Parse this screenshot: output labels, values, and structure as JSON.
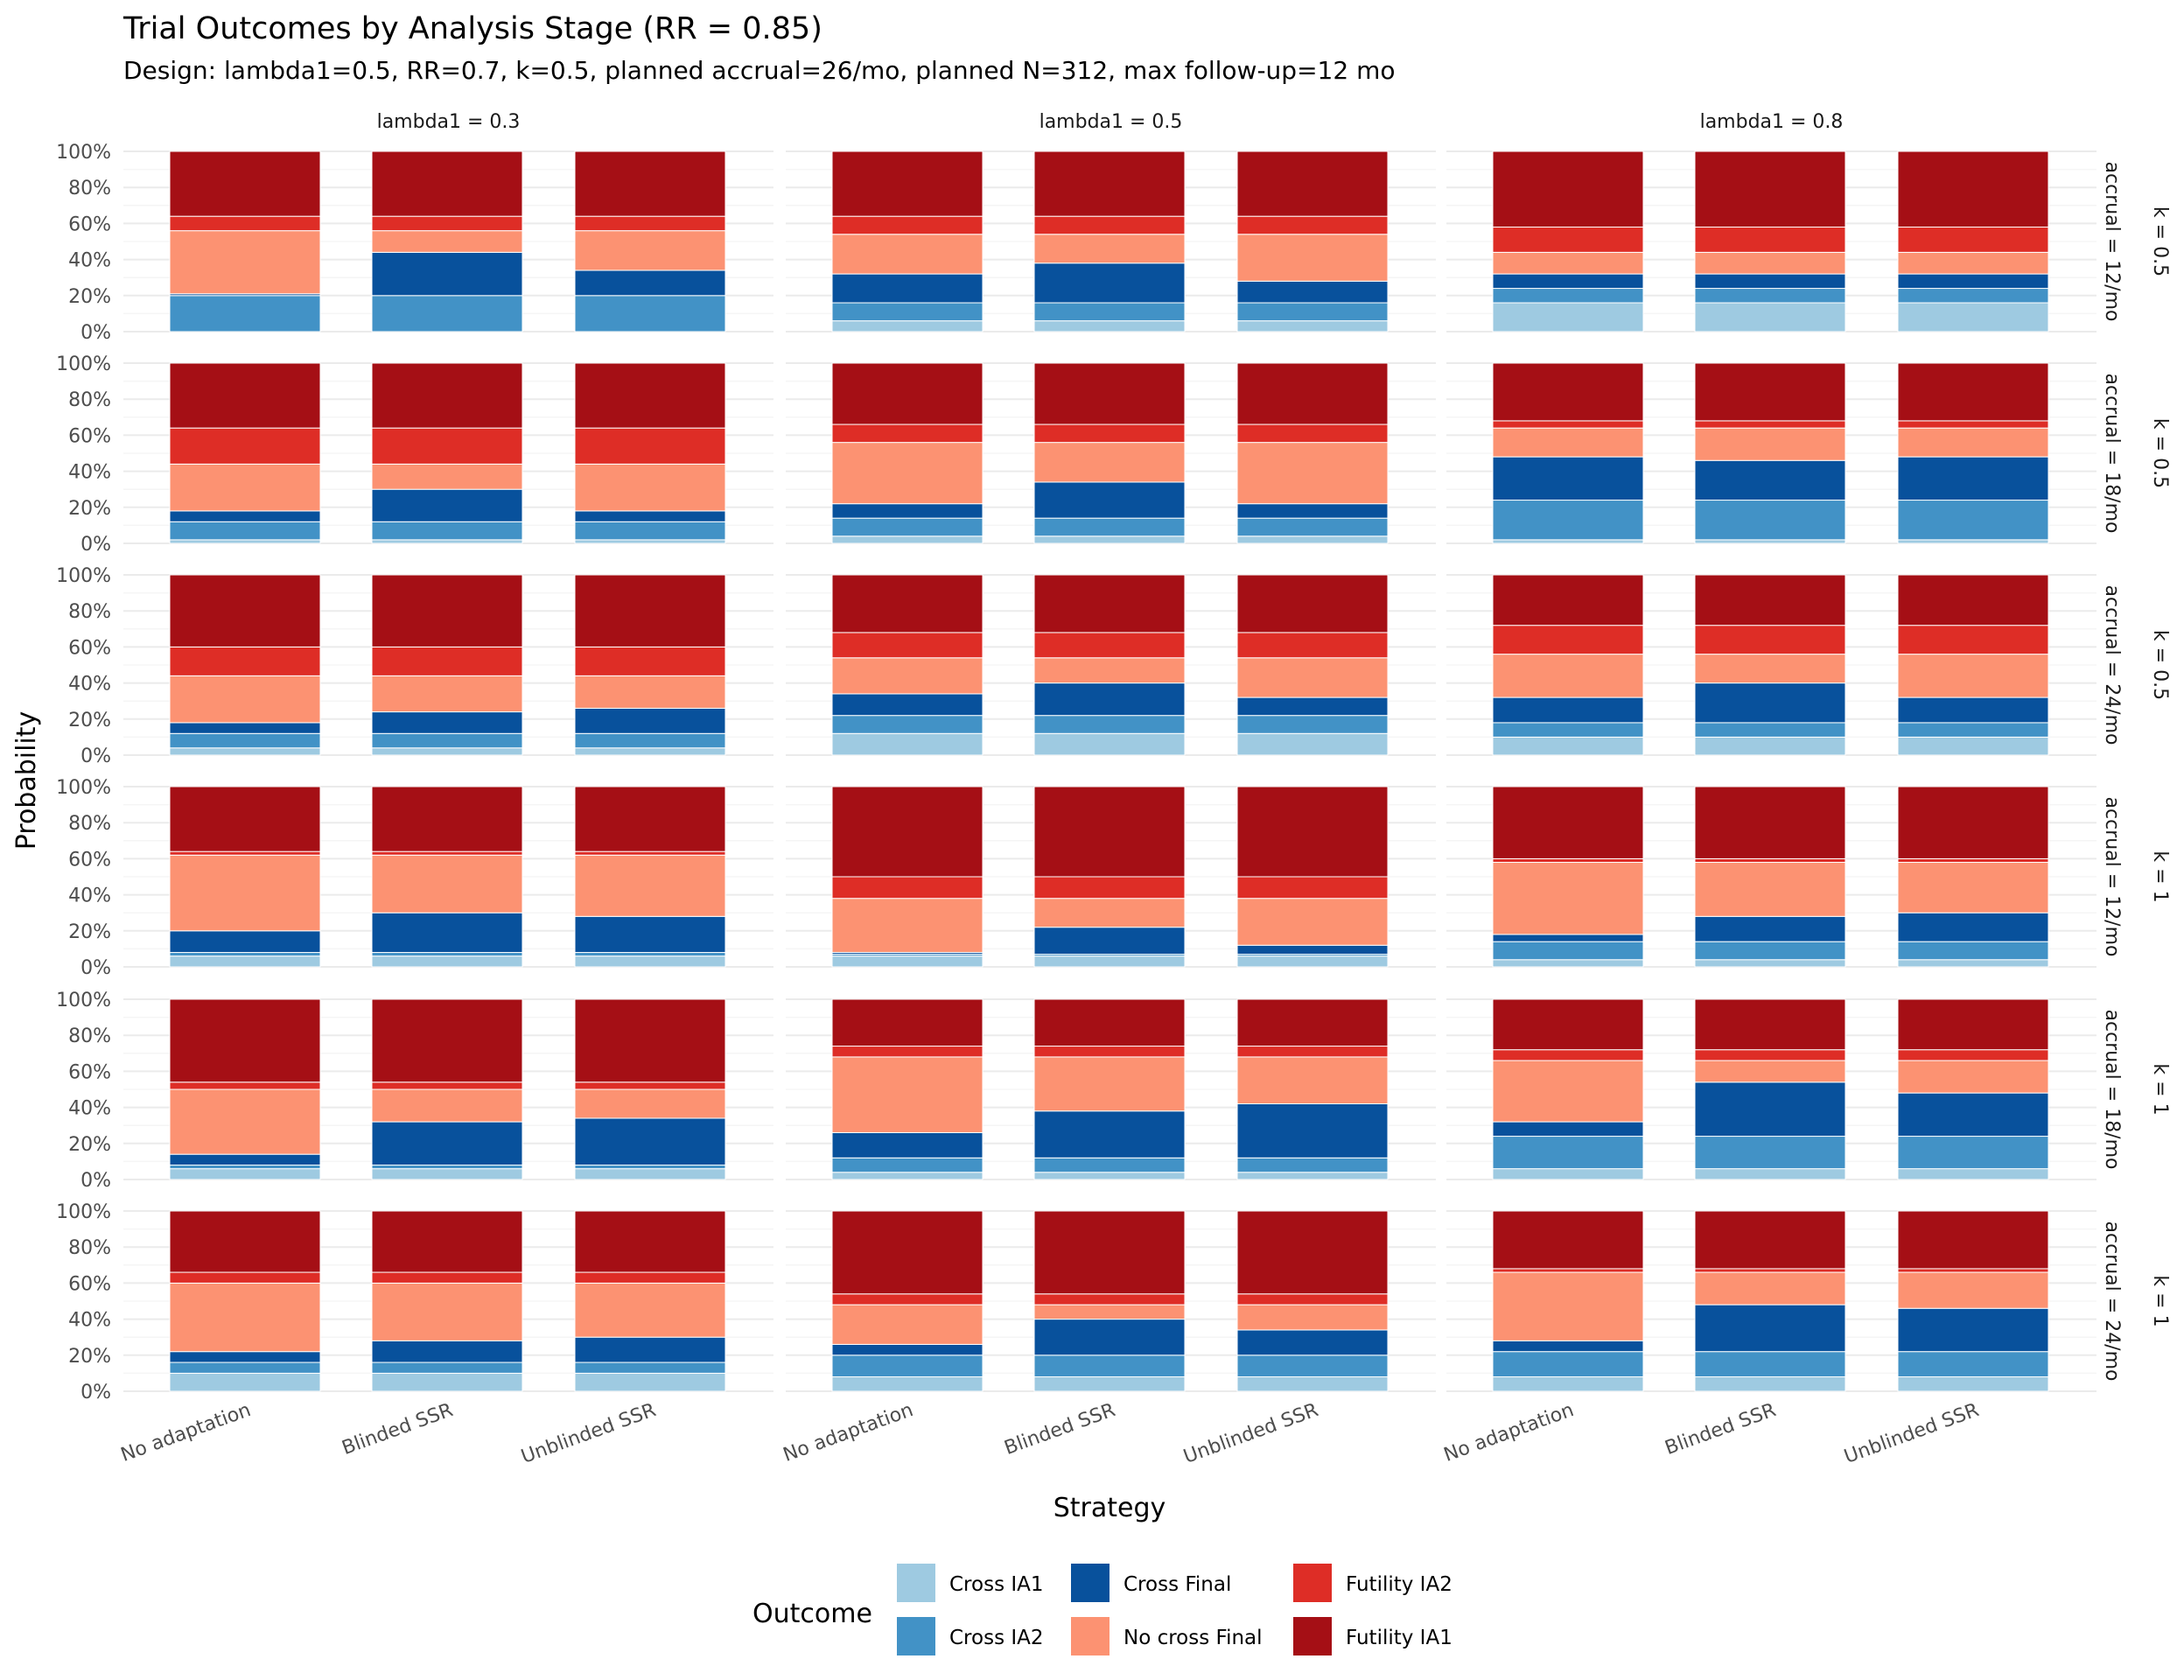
{
  "title": "Trial Outcomes by Analysis Stage (RR = 0.85)",
  "subtitle": "Design: lambda1=0.5, RR=0.7, k=0.5, planned accrual=26/mo, planned N=312, max follow-up=12 mo",
  "colors": {
    "Cross IA1": "#9ecae1",
    "Cross IA2": "#4292c6",
    "Cross Final": "#08519c",
    "No cross Final": "#fc9272",
    "Futility IA2": "#de2d26",
    "Futility IA1": "#a50f15",
    "grid_major": "#ebebeb",
    "grid_minor": "#f5f5f5"
  },
  "chart_data": {
    "type": "bar",
    "stacked": true,
    "xlabel": "Strategy",
    "ylabel": "Probability",
    "ylim": [
      0,
      1
    ],
    "y_ticks": [
      "0%",
      "20%",
      "40%",
      "60%",
      "80%",
      "100%"
    ],
    "categories": [
      "No adaptation",
      "Blinded SSR",
      "Unblinded SSR"
    ],
    "facet_columns": [
      "lambda1 = 0.3",
      "lambda1 = 0.5",
      "lambda1 = 0.8"
    ],
    "facet_rows": [
      {
        "accrual": "accrual = 12/mo",
        "k": "k = 0.5"
      },
      {
        "accrual": "accrual = 18/mo",
        "k": "k = 0.5"
      },
      {
        "accrual": "accrual = 24/mo",
        "k": "k = 0.5"
      },
      {
        "accrual": "accrual = 12/mo",
        "k": "k = 1"
      },
      {
        "accrual": "accrual = 18/mo",
        "k": "k = 1"
      },
      {
        "accrual": "accrual = 24/mo",
        "k": "k = 1"
      }
    ],
    "stack_order": [
      "Cross IA1",
      "Cross IA2",
      "Cross Final",
      "No cross Final",
      "Futility IA2",
      "Futility IA1"
    ],
    "legend": {
      "title": "Outcome",
      "position": "bottom",
      "items": [
        "Cross IA1",
        "Cross IA2",
        "Cross Final",
        "No cross Final",
        "Futility IA2",
        "Futility IA1"
      ]
    },
    "panels": [
      [
        [
          [
            0.0,
            0.2,
            0.01,
            0.35,
            0.08,
            0.36
          ],
          [
            0.0,
            0.2,
            0.24,
            0.12,
            0.08,
            0.36
          ],
          [
            0.0,
            0.2,
            0.14,
            0.22,
            0.08,
            0.36
          ]
        ],
        [
          [
            0.06,
            0.1,
            0.16,
            0.22,
            0.1,
            0.36
          ],
          [
            0.06,
            0.1,
            0.22,
            0.16,
            0.1,
            0.36
          ],
          [
            0.06,
            0.1,
            0.12,
            0.26,
            0.1,
            0.36
          ]
        ],
        [
          [
            0.16,
            0.08,
            0.08,
            0.12,
            0.14,
            0.42
          ],
          [
            0.16,
            0.08,
            0.08,
            0.12,
            0.14,
            0.42
          ],
          [
            0.16,
            0.08,
            0.08,
            0.12,
            0.14,
            0.42
          ]
        ]
      ],
      [
        [
          [
            0.02,
            0.1,
            0.06,
            0.26,
            0.2,
            0.36
          ],
          [
            0.02,
            0.1,
            0.18,
            0.14,
            0.2,
            0.36
          ],
          [
            0.02,
            0.1,
            0.06,
            0.26,
            0.2,
            0.36
          ]
        ],
        [
          [
            0.04,
            0.1,
            0.08,
            0.34,
            0.1,
            0.34
          ],
          [
            0.04,
            0.1,
            0.2,
            0.22,
            0.1,
            0.34
          ],
          [
            0.04,
            0.1,
            0.08,
            0.34,
            0.1,
            0.34
          ]
        ],
        [
          [
            0.02,
            0.22,
            0.24,
            0.16,
            0.04,
            0.32
          ],
          [
            0.02,
            0.22,
            0.22,
            0.18,
            0.04,
            0.32
          ],
          [
            0.02,
            0.22,
            0.24,
            0.16,
            0.04,
            0.32
          ]
        ]
      ],
      [
        [
          [
            0.04,
            0.08,
            0.06,
            0.26,
            0.16,
            0.4
          ],
          [
            0.04,
            0.08,
            0.12,
            0.2,
            0.16,
            0.4
          ],
          [
            0.04,
            0.08,
            0.14,
            0.18,
            0.16,
            0.4
          ]
        ],
        [
          [
            0.12,
            0.1,
            0.12,
            0.2,
            0.14,
            0.32
          ],
          [
            0.12,
            0.1,
            0.18,
            0.14,
            0.14,
            0.32
          ],
          [
            0.12,
            0.1,
            0.1,
            0.22,
            0.14,
            0.32
          ]
        ],
        [
          [
            0.1,
            0.08,
            0.14,
            0.24,
            0.16,
            0.28
          ],
          [
            0.1,
            0.08,
            0.22,
            0.16,
            0.16,
            0.28
          ],
          [
            0.1,
            0.08,
            0.14,
            0.24,
            0.16,
            0.28
          ]
        ]
      ],
      [
        [
          [
            0.06,
            0.02,
            0.12,
            0.42,
            0.02,
            0.36
          ],
          [
            0.06,
            0.02,
            0.22,
            0.32,
            0.02,
            0.36
          ],
          [
            0.06,
            0.02,
            0.2,
            0.34,
            0.02,
            0.36
          ]
        ],
        [
          [
            0.06,
            0.01,
            0.01,
            0.3,
            0.12,
            0.5
          ],
          [
            0.06,
            0.01,
            0.15,
            0.16,
            0.12,
            0.5
          ],
          [
            0.06,
            0.01,
            0.05,
            0.26,
            0.12,
            0.5
          ]
        ],
        [
          [
            0.04,
            0.1,
            0.04,
            0.4,
            0.02,
            0.4
          ],
          [
            0.04,
            0.1,
            0.14,
            0.3,
            0.02,
            0.4
          ],
          [
            0.04,
            0.1,
            0.16,
            0.28,
            0.02,
            0.4
          ]
        ]
      ],
      [
        [
          [
            0.06,
            0.02,
            0.06,
            0.36,
            0.04,
            0.46
          ],
          [
            0.06,
            0.02,
            0.24,
            0.18,
            0.04,
            0.46
          ],
          [
            0.06,
            0.02,
            0.26,
            0.16,
            0.04,
            0.46
          ]
        ],
        [
          [
            0.04,
            0.08,
            0.14,
            0.42,
            0.06,
            0.26
          ],
          [
            0.04,
            0.08,
            0.26,
            0.3,
            0.06,
            0.26
          ],
          [
            0.04,
            0.08,
            0.3,
            0.26,
            0.06,
            0.26
          ]
        ],
        [
          [
            0.06,
            0.18,
            0.08,
            0.34,
            0.06,
            0.28
          ],
          [
            0.06,
            0.18,
            0.3,
            0.12,
            0.06,
            0.28
          ],
          [
            0.06,
            0.18,
            0.24,
            0.18,
            0.06,
            0.28
          ]
        ]
      ],
      [
        [
          [
            0.1,
            0.06,
            0.06,
            0.38,
            0.06,
            0.34
          ],
          [
            0.1,
            0.06,
            0.12,
            0.32,
            0.06,
            0.34
          ],
          [
            0.1,
            0.06,
            0.14,
            0.3,
            0.06,
            0.34
          ]
        ],
        [
          [
            0.08,
            0.12,
            0.06,
            0.22,
            0.06,
            0.46
          ],
          [
            0.08,
            0.12,
            0.2,
            0.08,
            0.06,
            0.46
          ],
          [
            0.08,
            0.12,
            0.14,
            0.14,
            0.06,
            0.46
          ]
        ],
        [
          [
            0.08,
            0.14,
            0.06,
            0.38,
            0.02,
            0.32
          ],
          [
            0.08,
            0.14,
            0.26,
            0.18,
            0.02,
            0.32
          ],
          [
            0.08,
            0.14,
            0.24,
            0.2,
            0.02,
            0.32
          ]
        ]
      ]
    ]
  }
}
